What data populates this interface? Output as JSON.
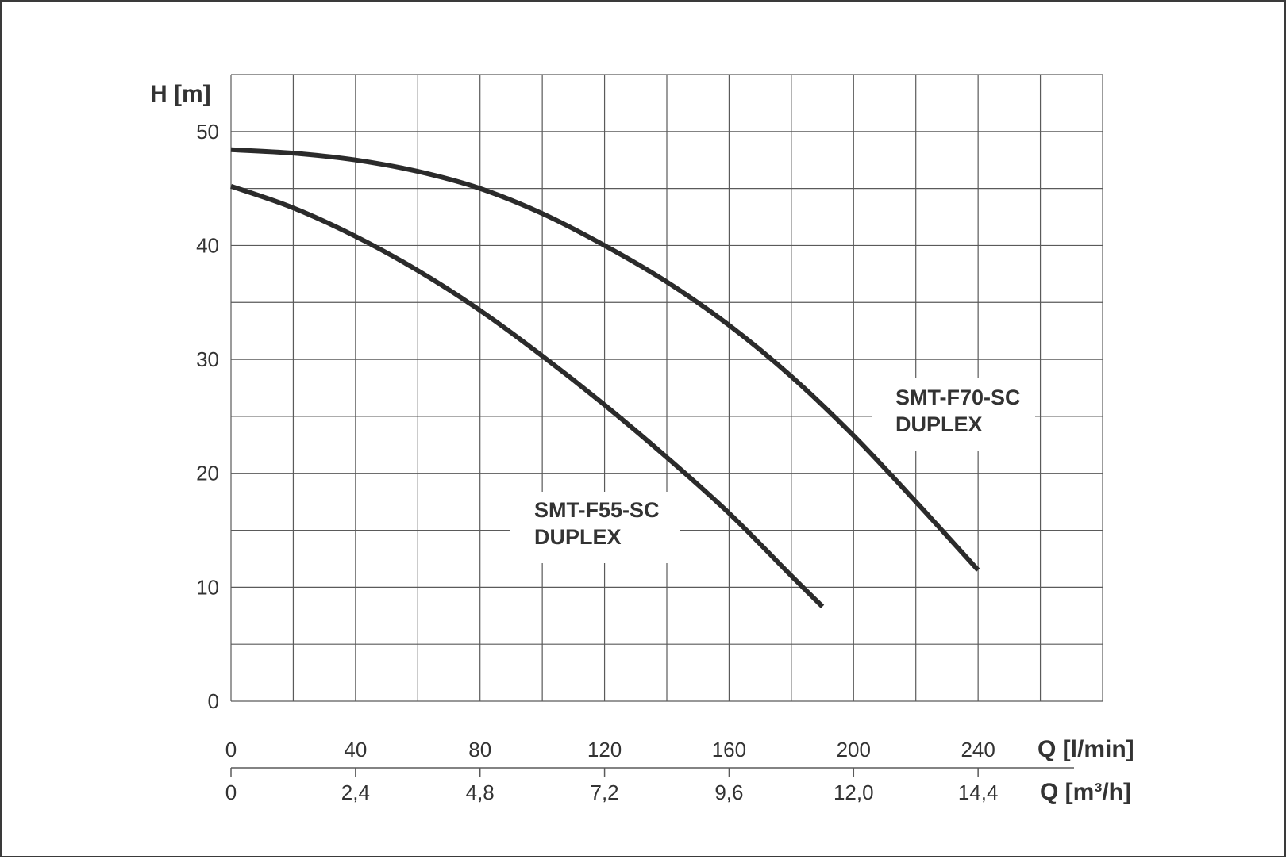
{
  "chart_data": {
    "type": "line",
    "ylabel": "H [m]",
    "xlabel_primary": "Q [l/min]",
    "xlabel_secondary": "Q [m³/h]",
    "ylim": [
      0,
      55
    ],
    "xlim": [
      0,
      280
    ],
    "grid": true,
    "y_ticks": [
      "0",
      "10",
      "20",
      "30",
      "40",
      "50"
    ],
    "x_ticks_primary": [
      "0",
      "40",
      "80",
      "120",
      "160",
      "200",
      "240"
    ],
    "x_ticks_secondary": [
      "0",
      "2,4",
      "4,8",
      "7,2",
      "9,6",
      "12,0",
      "14,4"
    ],
    "series": [
      {
        "name": "SMT-F55-SC DUPLEX",
        "label_lines": [
          "SMT-F55-SC",
          "DUPLEX"
        ],
        "x": [
          0,
          20,
          40,
          60,
          80,
          100,
          120,
          140,
          160,
          180,
          190
        ],
        "y": [
          45.2,
          43.3,
          40.8,
          37.8,
          34.3,
          30.3,
          26.0,
          21.4,
          16.5,
          11.0,
          8.3
        ]
      },
      {
        "name": "SMT-F70-SC DUPLEX",
        "label_lines": [
          "SMT-F70-SC",
          "DUPLEX"
        ],
        "x": [
          0,
          20,
          40,
          60,
          80,
          100,
          120,
          140,
          160,
          180,
          200,
          220,
          240
        ],
        "y": [
          48.4,
          48.1,
          47.5,
          46.5,
          45.0,
          42.8,
          40.0,
          36.8,
          33.0,
          28.5,
          23.3,
          17.5,
          11.5
        ]
      }
    ],
    "colors": {
      "line": "#2b2b2b",
      "grid": "#5a5a5a",
      "text": "#333333"
    }
  }
}
